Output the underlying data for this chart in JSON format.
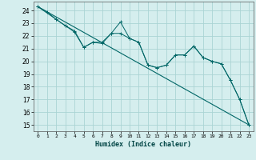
{
  "xlabel": "Humidex (Indice chaleur)",
  "background_color": "#d5eeee",
  "grid_color": "#aad4d4",
  "line_color": "#006666",
  "xlim": [
    -0.5,
    23.5
  ],
  "ylim": [
    14.5,
    24.7
  ],
  "yticks": [
    15,
    16,
    17,
    18,
    19,
    20,
    21,
    22,
    23,
    24
  ],
  "xticks": [
    0,
    1,
    2,
    3,
    4,
    5,
    6,
    7,
    8,
    9,
    10,
    11,
    12,
    13,
    14,
    15,
    16,
    17,
    18,
    19,
    20,
    21,
    22,
    23
  ],
  "line1_x": [
    0,
    1,
    2,
    3,
    4,
    5,
    6,
    7,
    8,
    9,
    10,
    11,
    12,
    13,
    14,
    15,
    16,
    17,
    18,
    19,
    20,
    21,
    22,
    23
  ],
  "line1_y": [
    24.3,
    23.9,
    23.3,
    22.8,
    22.4,
    21.1,
    21.5,
    21.5,
    22.2,
    23.1,
    21.8,
    21.5,
    19.7,
    19.5,
    19.7,
    20.5,
    20.5,
    21.2,
    20.3,
    20.0,
    19.8,
    18.5,
    17.0,
    15.0
  ],
  "line2_x": [
    0,
    2,
    3,
    4,
    5,
    6,
    7,
    8,
    9,
    10,
    11,
    12,
    13,
    14,
    15,
    16,
    17,
    18,
    19,
    20,
    21,
    22,
    23
  ],
  "line2_y": [
    24.3,
    23.3,
    22.8,
    22.3,
    21.1,
    21.5,
    21.4,
    22.2,
    22.2,
    21.8,
    21.5,
    19.7,
    19.5,
    19.7,
    20.5,
    20.5,
    21.2,
    20.3,
    20.0,
    19.8,
    18.5,
    17.0,
    15.0
  ],
  "line3_x": [
    0,
    23
  ],
  "line3_y": [
    24.3,
    15.0
  ]
}
